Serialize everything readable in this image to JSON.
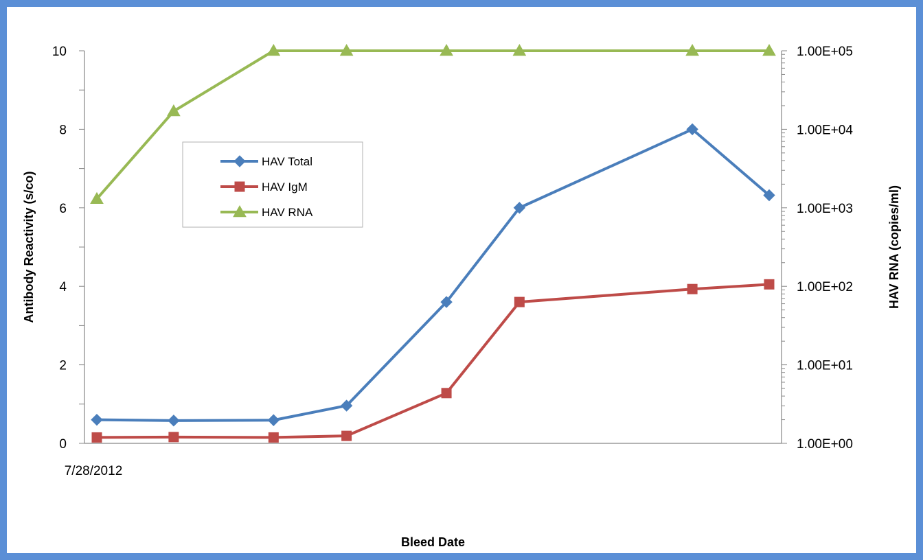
{
  "chart_data": {
    "type": "line",
    "x": [
      "7/28/2012",
      "",
      "",
      "",
      "",
      "",
      "",
      ""
    ],
    "x_positions": [
      0,
      1,
      2.3,
      3.25,
      4.55,
      5.5,
      7.75,
      8.75
    ],
    "xlabel": "Bleed Date",
    "ylabel_left": "Antibody Reactivity (s/co)",
    "ylabel_right": "HAV RNA (copies/ml)",
    "ylim_left": [
      0,
      10
    ],
    "yticks_left": [
      0,
      2,
      4,
      6,
      8,
      10
    ],
    "ylim_right": [
      1,
      100000
    ],
    "yscale_right": "log",
    "yticks_right": [
      "1.00E+00",
      "1.00E+01",
      "1.00E+02",
      "1.00E+03",
      "1.00E+04",
      "1.00E+05"
    ],
    "grid": false,
    "legend_position": "upper-left",
    "series": [
      {
        "name": "HAV Total",
        "axis": "left",
        "marker": "diamond",
        "color": "#4a7ebb",
        "values": [
          0.6,
          0.58,
          0.59,
          0.96,
          3.6,
          6.0,
          8.0,
          6.32
        ]
      },
      {
        "name": "HAV IgM",
        "axis": "left",
        "marker": "square",
        "color": "#be4b48",
        "values": [
          0.15,
          0.16,
          0.15,
          0.19,
          1.28,
          3.6,
          3.93,
          4.05
        ]
      },
      {
        "name": "HAV RNA",
        "axis": "right",
        "marker": "triangle",
        "color": "#98b954",
        "values": [
          1300,
          17000,
          100000,
          100000,
          100000,
          100000,
          100000,
          100000
        ]
      }
    ]
  }
}
